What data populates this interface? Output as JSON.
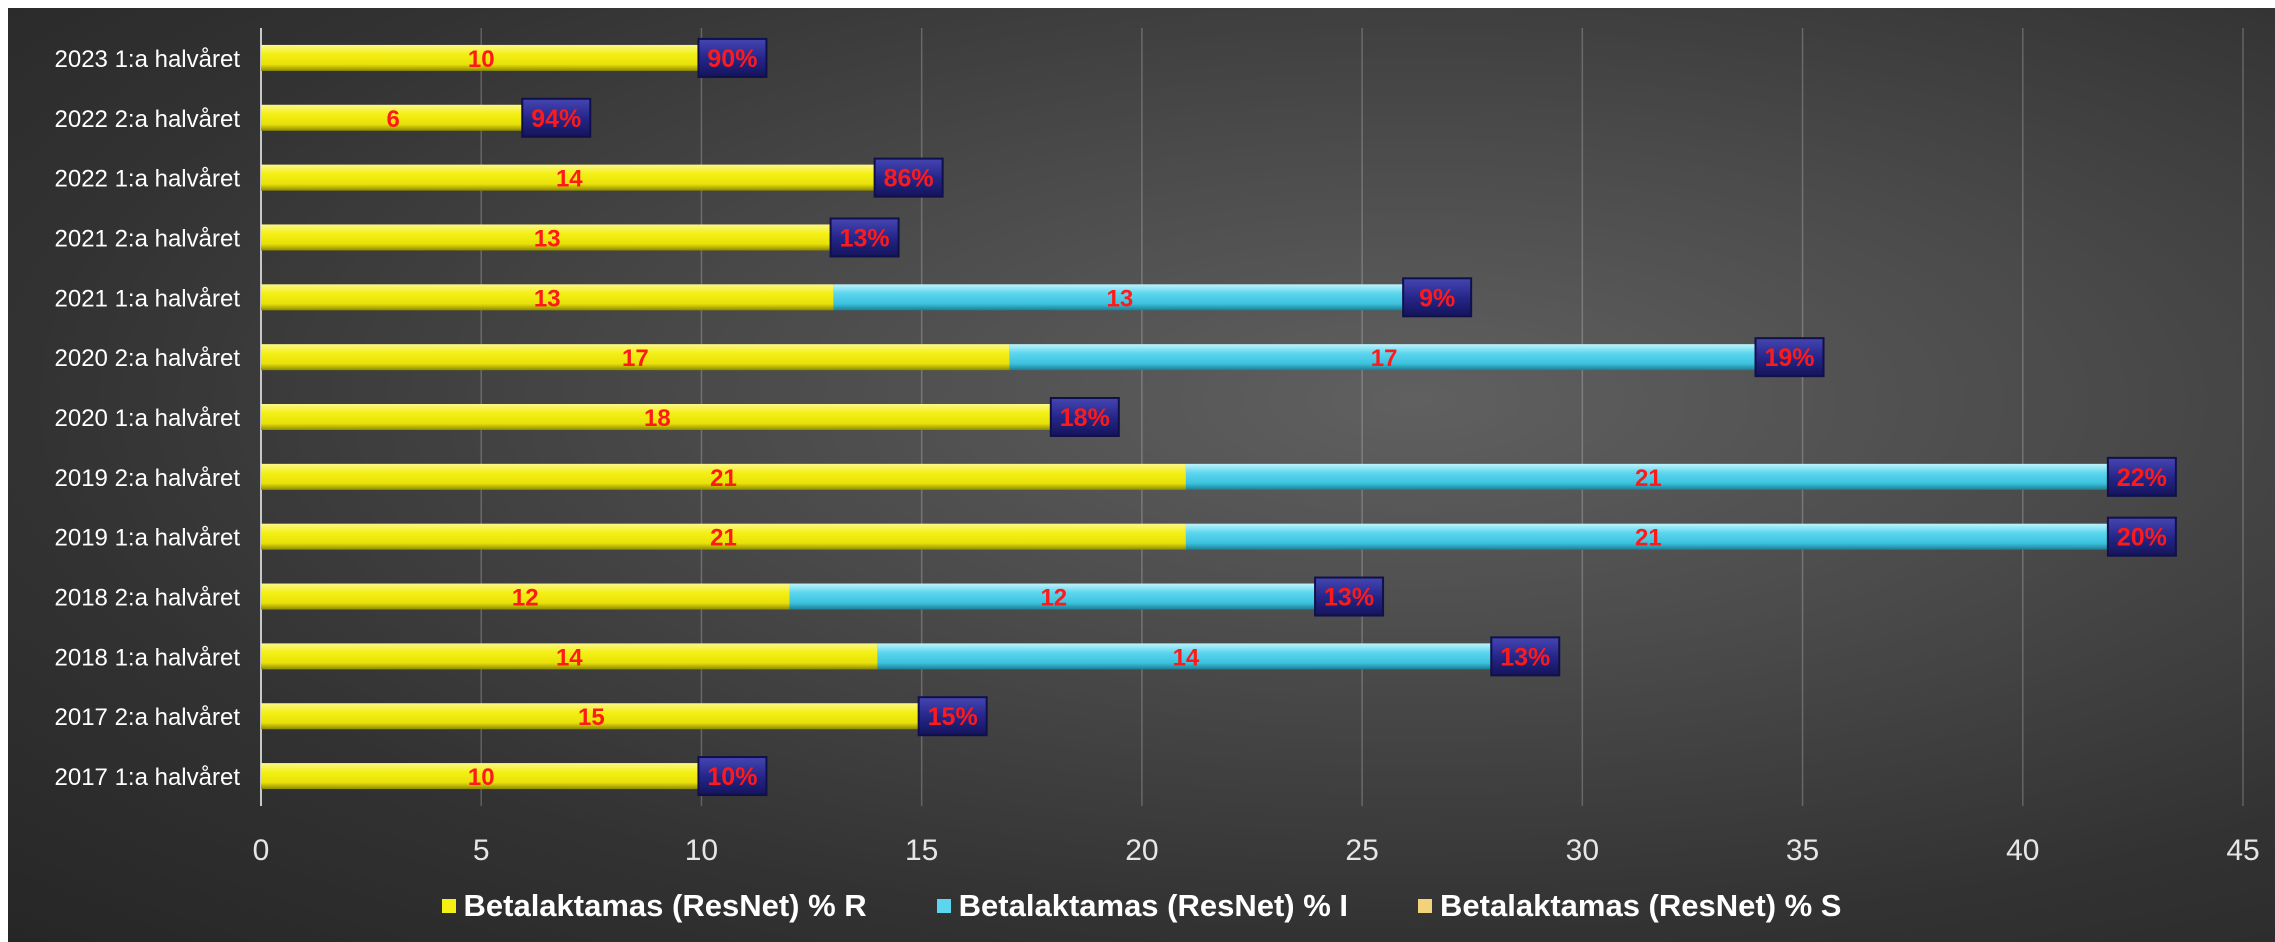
{
  "chart_data": {
    "type": "bar",
    "orientation": "horizontal",
    "stacked": true,
    "categories": [
      "2017 1:a halvåret",
      "2017 2:a halvåret",
      "2018 1:a halvåret",
      "2018 2:a halvåret",
      "2019 1:a halvåret",
      "2019 2:a halvåret",
      "2020 1:a halvåret",
      "2020 2:a halvåret",
      "2021 1:a halvåret",
      "2021 2:a halvåret",
      "2022 1:a halvåret",
      "2022 2:a halvåret",
      "2023 1:a halvåret"
    ],
    "series": [
      {
        "name": "Betalaktamas (ResNet) % R",
        "color": "#f4f014",
        "values": [
          10,
          15,
          14,
          12,
          21,
          21,
          18,
          17,
          13,
          13,
          14,
          6,
          10
        ]
      },
      {
        "name": "Betalaktamas (ResNet) % I",
        "color": "#5cd6ee",
        "values": [
          0,
          0,
          14,
          12,
          21,
          21,
          0,
          17,
          13,
          0,
          0,
          0,
          0
        ]
      },
      {
        "name": "Betalaktamas (ResNet) % S",
        "color": "#f3d27a",
        "values": [
          null,
          null,
          null,
          null,
          null,
          null,
          null,
          null,
          null,
          null,
          null,
          null,
          null
        ]
      }
    ],
    "end_labels": [
      "10%",
      "15%",
      "13%",
      "13%",
      "20%",
      "22%",
      "18%",
      "19%",
      "9%",
      "13%",
      "86%",
      "94%",
      "90%"
    ],
    "xlim": [
      0,
      45
    ],
    "xticks": [
      0,
      5,
      10,
      15,
      20,
      25,
      30,
      35,
      40,
      45
    ],
    "grid": "vertical",
    "legend_position": "bottom",
    "data_label_color": "#ff1a1a",
    "end_label_box_color": "#2a2a8c"
  }
}
